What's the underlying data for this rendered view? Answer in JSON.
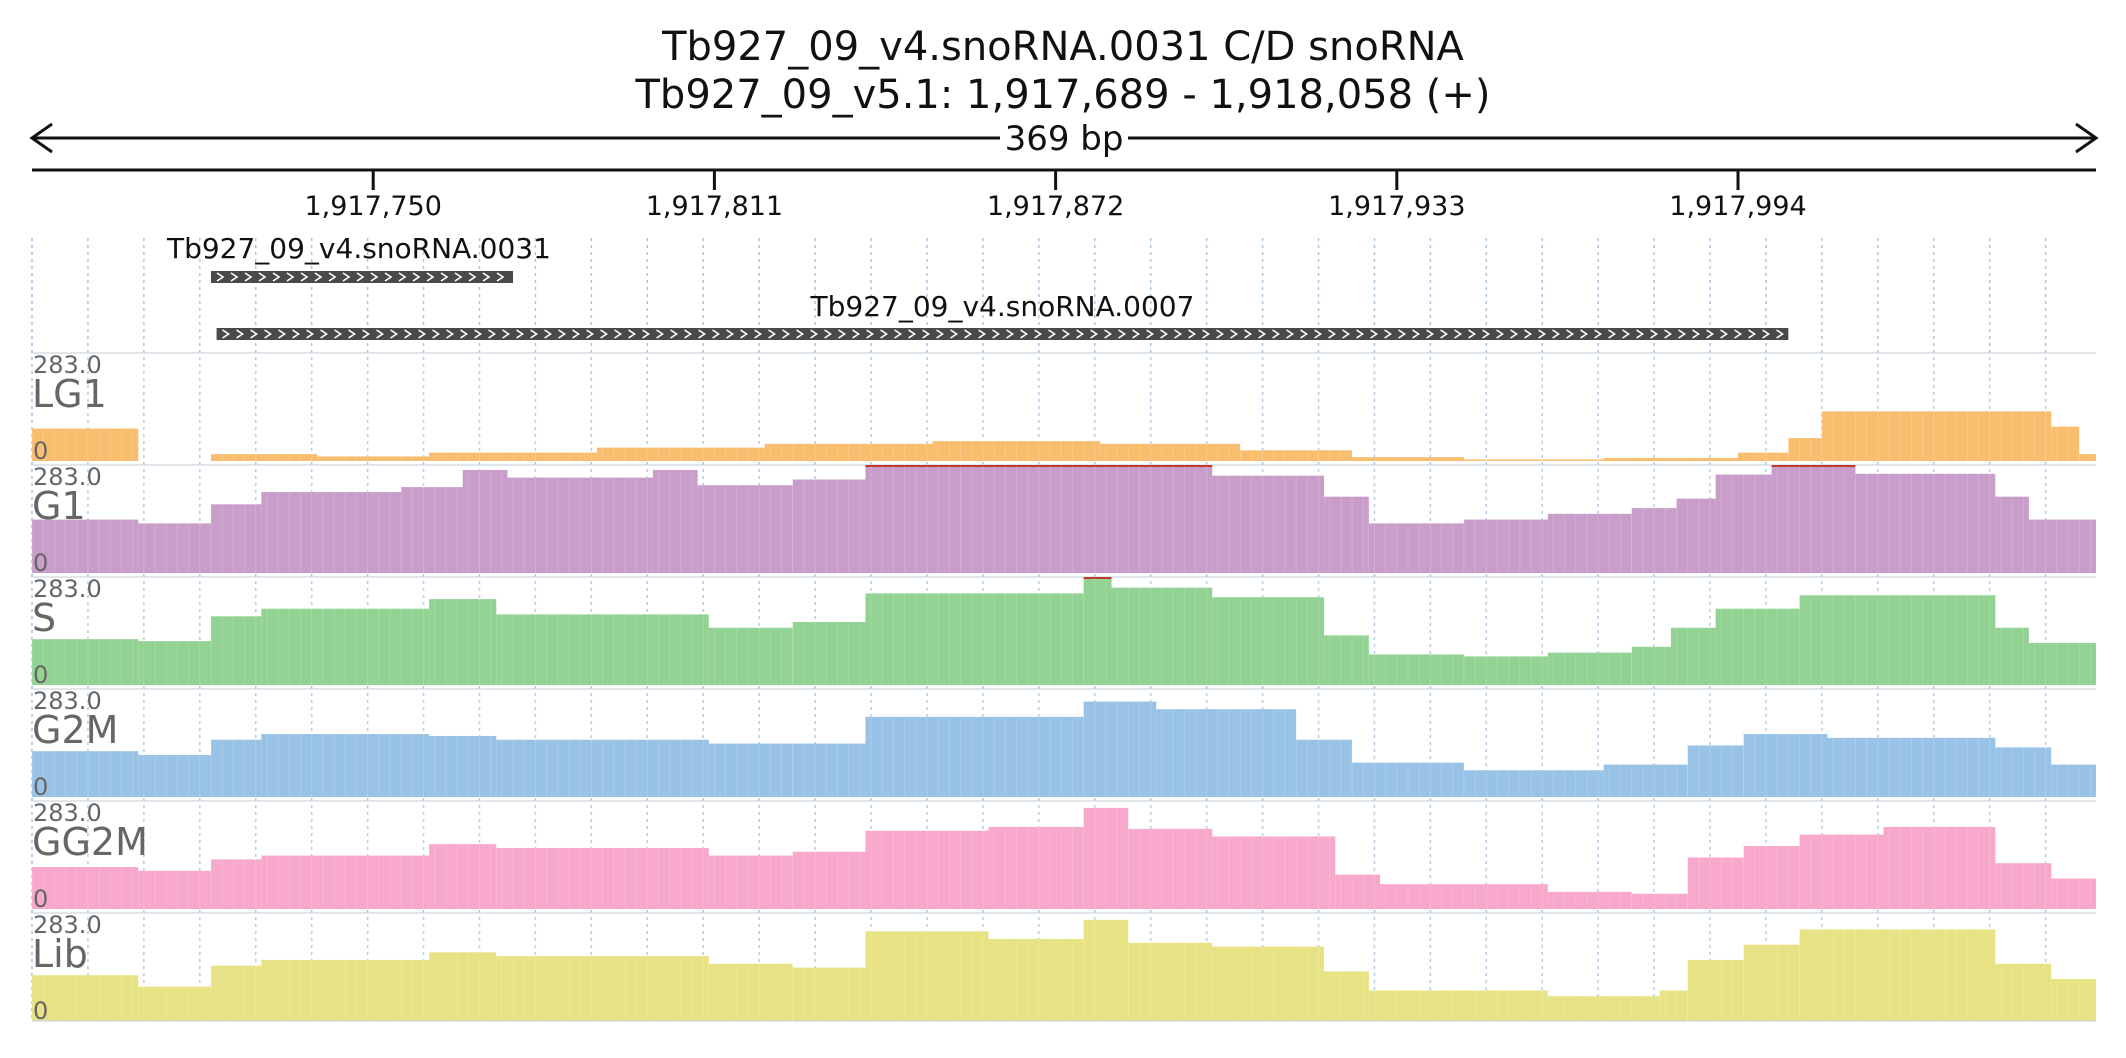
{
  "header": {
    "title_line1": "Tb927_09_v4.snoRNA.0031  C/D snoRNA",
    "title_line2": "Tb927_09_v5.1: 1,917,689 - 1,918,058 (+)",
    "span_label": "369 bp"
  },
  "chart_data": {
    "type": "bar",
    "region": {
      "start": 1917689,
      "end": 1918058
    },
    "ticks": [
      {
        "pos": 1917750,
        "label": "1,917,750"
      },
      {
        "pos": 1917811,
        "label": "1,917,811"
      },
      {
        "pos": 1917872,
        "label": "1,917,872"
      },
      {
        "pos": 1917933,
        "label": "1,917,933"
      },
      {
        "pos": 1917994,
        "label": "1,917,994"
      }
    ],
    "features": [
      {
        "name": "Tb927_09_v4.snoRNA.0031",
        "start": 1917721,
        "end": 1917775,
        "strand": "+"
      },
      {
        "name": "Tb927_09_v4.snoRNA.0007",
        "start": 1917722,
        "end": 1918003,
        "strand": "+"
      }
    ],
    "ylim": [
      0,
      283.0
    ],
    "max_label": "283.0",
    "zero_label": "0",
    "tracks": [
      {
        "name": "LG1",
        "color": "#f9bd6e",
        "segments": [
          [
            1917689,
            1917708,
            85
          ],
          [
            1917708,
            1917721,
            0
          ],
          [
            1917721,
            1917740,
            18
          ],
          [
            1917740,
            1917760,
            12
          ],
          [
            1917760,
            1917790,
            22
          ],
          [
            1917790,
            1917820,
            35
          ],
          [
            1917820,
            1917850,
            45
          ],
          [
            1917850,
            1917880,
            52
          ],
          [
            1917880,
            1917905,
            45
          ],
          [
            1917905,
            1917925,
            28
          ],
          [
            1917925,
            1917945,
            10
          ],
          [
            1917945,
            1917970,
            4
          ],
          [
            1917970,
            1917994,
            8
          ],
          [
            1917994,
            1918003,
            22
          ],
          [
            1918003,
            1918009,
            60
          ],
          [
            1918009,
            1918050,
            130
          ],
          [
            1918050,
            1918055,
            90
          ],
          [
            1918055,
            1918058,
            18
          ]
        ]
      },
      {
        "name": "G1",
        "color": "#c89dc9",
        "segments": [
          [
            1917689,
            1917708,
            140
          ],
          [
            1917708,
            1917721,
            130
          ],
          [
            1917721,
            1917730,
            180
          ],
          [
            1917730,
            1917755,
            212
          ],
          [
            1917755,
            1917766,
            225
          ],
          [
            1917766,
            1917774,
            270
          ],
          [
            1917774,
            1917800,
            250
          ],
          [
            1917800,
            1917808,
            270
          ],
          [
            1917808,
            1917825,
            230
          ],
          [
            1917825,
            1917838,
            245
          ],
          [
            1917838,
            1917900,
            283
          ],
          [
            1917900,
            1917920,
            255
          ],
          [
            1917920,
            1917928,
            200
          ],
          [
            1917928,
            1917945,
            130
          ],
          [
            1917945,
            1917960,
            140
          ],
          [
            1917960,
            1917975,
            155
          ],
          [
            1917975,
            1917983,
            170
          ],
          [
            1917983,
            1917990,
            195
          ],
          [
            1917990,
            1918000,
            258
          ],
          [
            1918000,
            1918015,
            283
          ],
          [
            1918015,
            1918040,
            260
          ],
          [
            1918040,
            1918046,
            200
          ],
          [
            1918046,
            1918058,
            140
          ]
        ]
      },
      {
        "name": "S",
        "color": "#92d293",
        "segments": [
          [
            1917689,
            1917708,
            120
          ],
          [
            1917708,
            1917721,
            115
          ],
          [
            1917721,
            1917730,
            180
          ],
          [
            1917730,
            1917760,
            200
          ],
          [
            1917760,
            1917772,
            225
          ],
          [
            1917772,
            1917810,
            185
          ],
          [
            1917810,
            1917825,
            150
          ],
          [
            1917825,
            1917838,
            165
          ],
          [
            1917838,
            1917877,
            240
          ],
          [
            1917877,
            1917882,
            283
          ],
          [
            1917882,
            1917900,
            255
          ],
          [
            1917900,
            1917920,
            230
          ],
          [
            1917920,
            1917928,
            130
          ],
          [
            1917928,
            1917945,
            80
          ],
          [
            1917945,
            1917960,
            75
          ],
          [
            1917960,
            1917975,
            85
          ],
          [
            1917975,
            1917982,
            100
          ],
          [
            1917982,
            1917990,
            150
          ],
          [
            1917990,
            1918005,
            200
          ],
          [
            1918005,
            1918040,
            235
          ],
          [
            1918040,
            1918046,
            150
          ],
          [
            1918046,
            1918058,
            110
          ]
        ]
      },
      {
        "name": "G2M",
        "color": "#98c2e6",
        "segments": [
          [
            1917689,
            1917708,
            120
          ],
          [
            1917708,
            1917721,
            110
          ],
          [
            1917721,
            1917730,
            150
          ],
          [
            1917730,
            1917760,
            165
          ],
          [
            1917760,
            1917772,
            160
          ],
          [
            1917772,
            1917810,
            150
          ],
          [
            1917810,
            1917825,
            140
          ],
          [
            1917825,
            1917838,
            140
          ],
          [
            1917838,
            1917877,
            210
          ],
          [
            1917877,
            1917890,
            250
          ],
          [
            1917890,
            1917915,
            230
          ],
          [
            1917915,
            1917925,
            150
          ],
          [
            1917925,
            1917945,
            90
          ],
          [
            1917945,
            1917970,
            70
          ],
          [
            1917970,
            1917985,
            85
          ],
          [
            1917985,
            1917995,
            135
          ],
          [
            1917995,
            1918010,
            165
          ],
          [
            1918010,
            1918040,
            155
          ],
          [
            1918040,
            1918050,
            130
          ],
          [
            1918050,
            1918058,
            85
          ]
        ]
      },
      {
        "name": "GG2M",
        "color": "#f7a8cb",
        "segments": [
          [
            1917689,
            1917708,
            110
          ],
          [
            1917708,
            1917721,
            100
          ],
          [
            1917721,
            1917730,
            130
          ],
          [
            1917730,
            1917760,
            140
          ],
          [
            1917760,
            1917772,
            170
          ],
          [
            1917772,
            1917810,
            160
          ],
          [
            1917810,
            1917825,
            140
          ],
          [
            1917825,
            1917838,
            150
          ],
          [
            1917838,
            1917860,
            205
          ],
          [
            1917860,
            1917877,
            215
          ],
          [
            1917877,
            1917885,
            265
          ],
          [
            1917885,
            1917900,
            210
          ],
          [
            1917900,
            1917922,
            190
          ],
          [
            1917922,
            1917930,
            90
          ],
          [
            1917930,
            1917960,
            65
          ],
          [
            1917960,
            1917975,
            45
          ],
          [
            1917975,
            1917985,
            40
          ],
          [
            1917985,
            1917995,
            135
          ],
          [
            1917995,
            1918005,
            165
          ],
          [
            1918005,
            1918020,
            195
          ],
          [
            1918020,
            1918040,
            215
          ],
          [
            1918040,
            1918050,
            120
          ],
          [
            1918050,
            1918058,
            80
          ]
        ]
      },
      {
        "name": "Lib",
        "color": "#e7e283",
        "segments": [
          [
            1917689,
            1917708,
            120
          ],
          [
            1917708,
            1917721,
            90
          ],
          [
            1917721,
            1917730,
            145
          ],
          [
            1917730,
            1917760,
            160
          ],
          [
            1917760,
            1917772,
            180
          ],
          [
            1917772,
            1917810,
            170
          ],
          [
            1917810,
            1917825,
            150
          ],
          [
            1917825,
            1917838,
            140
          ],
          [
            1917838,
            1917860,
            235
          ],
          [
            1917860,
            1917877,
            215
          ],
          [
            1917877,
            1917885,
            265
          ],
          [
            1917885,
            1917900,
            205
          ],
          [
            1917900,
            1917920,
            195
          ],
          [
            1917920,
            1917928,
            130
          ],
          [
            1917928,
            1917960,
            80
          ],
          [
            1917960,
            1917980,
            65
          ],
          [
            1917980,
            1917985,
            80
          ],
          [
            1917985,
            1917995,
            160
          ],
          [
            1917995,
            1918005,
            200
          ],
          [
            1918005,
            1918040,
            240
          ],
          [
            1918040,
            1918050,
            150
          ],
          [
            1918050,
            1918058,
            110
          ]
        ]
      }
    ]
  }
}
